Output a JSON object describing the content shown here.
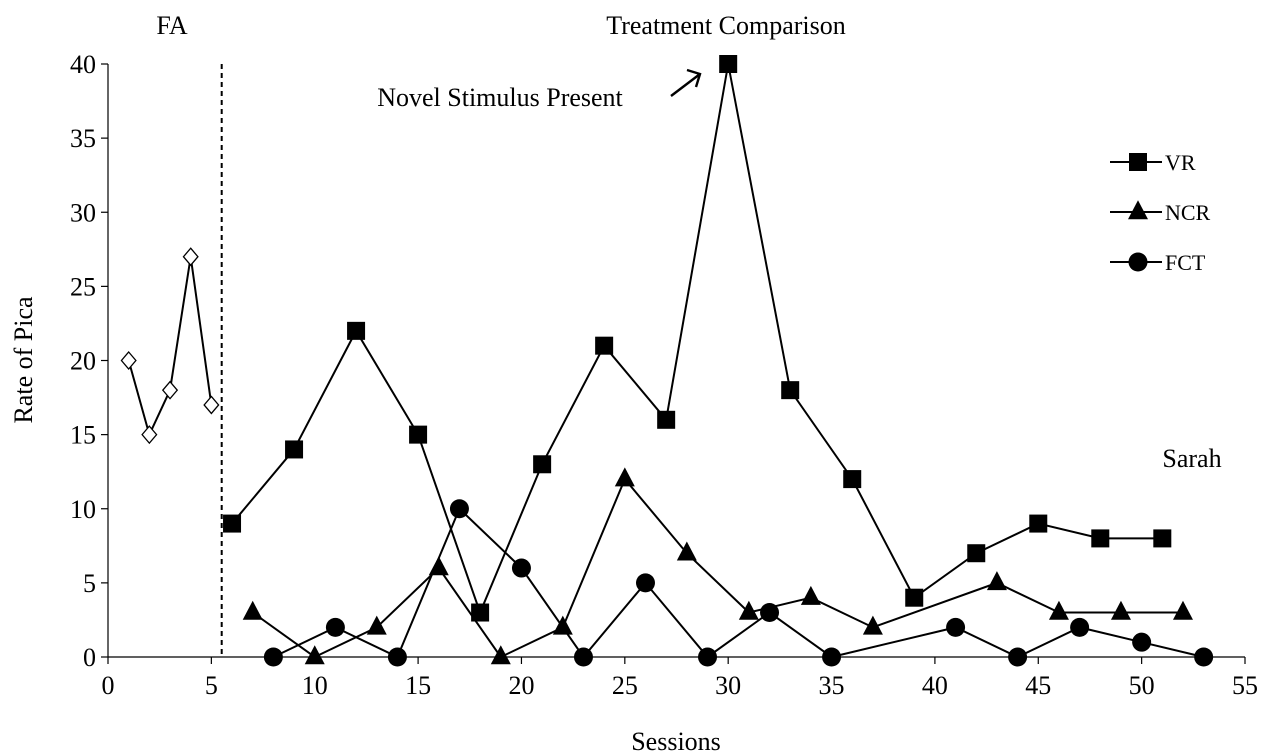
{
  "chart_data": {
    "type": "line",
    "labels": {
      "fa": "FA",
      "treatment": "Treatment Comparison",
      "novel": "Novel Stimulus Present",
      "participant": "Sarah"
    },
    "xlabel": "Sessions",
    "ylabel": "Rate of Pica",
    "xlim": [
      0,
      55
    ],
    "ylim": [
      0,
      40
    ],
    "xticks": [
      "0",
      "5",
      "10",
      "15",
      "20",
      "25",
      "30",
      "35",
      "40",
      "45",
      "50",
      "55"
    ],
    "yticks": [
      "0",
      "5",
      "10",
      "15",
      "20",
      "25",
      "30",
      "35",
      "40"
    ],
    "phase_line_x": 5.5,
    "legend_position": "right",
    "fa_series": {
      "marker": "open-diamond",
      "points": [
        [
          1,
          20
        ],
        [
          2,
          15
        ],
        [
          3,
          18
        ],
        [
          4,
          27
        ],
        [
          5,
          17
        ]
      ]
    },
    "series": [
      {
        "name": "VR",
        "marker": "square",
        "points": [
          [
            6,
            9
          ],
          [
            9,
            14
          ],
          [
            12,
            22
          ],
          [
            15,
            15
          ],
          [
            18,
            3
          ],
          [
            21,
            13
          ],
          [
            24,
            21
          ],
          [
            27,
            16
          ],
          [
            30,
            40
          ],
          [
            33,
            18
          ],
          [
            36,
            12
          ],
          [
            39,
            4
          ],
          [
            42,
            7
          ],
          [
            45,
            9
          ],
          [
            48,
            8
          ],
          [
            51,
            8
          ]
        ]
      },
      {
        "name": "NCR",
        "marker": "triangle",
        "points": [
          [
            7,
            3
          ],
          [
            10,
            0
          ],
          [
            13,
            2
          ],
          [
            16,
            6
          ],
          [
            19,
            0
          ],
          [
            22,
            2
          ],
          [
            25,
            12
          ],
          [
            28,
            7
          ],
          [
            31,
            3
          ],
          [
            34,
            4
          ],
          [
            37,
            2
          ],
          [
            43,
            5
          ],
          [
            46,
            3
          ],
          [
            49,
            3
          ],
          [
            52,
            3
          ]
        ]
      },
      {
        "name": "FCT",
        "marker": "circle",
        "points": [
          [
            8,
            0
          ],
          [
            11,
            2
          ],
          [
            14,
            0
          ],
          [
            17,
            10
          ],
          [
            20,
            6
          ],
          [
            23,
            0
          ],
          [
            26,
            5
          ],
          [
            29,
            0
          ],
          [
            32,
            3
          ],
          [
            35,
            0
          ],
          [
            41,
            2
          ],
          [
            44,
            0
          ],
          [
            47,
            2
          ],
          [
            50,
            1
          ],
          [
            53,
            0
          ]
        ]
      }
    ]
  }
}
